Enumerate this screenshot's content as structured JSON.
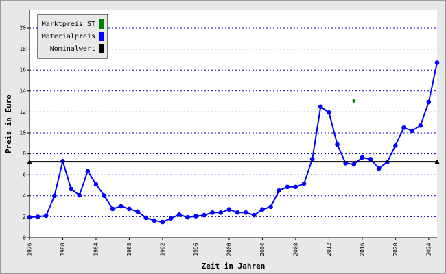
{
  "chart_data": {
    "type": "line",
    "x_label": "Zeit in Jahren",
    "y_label": "Preis in Euro",
    "xlim": [
      1976,
      2025
    ],
    "xticks": [
      1976,
      1980,
      1984,
      1988,
      1992,
      1996,
      2000,
      2004,
      2008,
      2012,
      2016,
      2020,
      2024
    ],
    "ylim": [
      0,
      21.7
    ],
    "yticks": [
      0,
      2,
      4,
      6,
      8,
      10,
      12,
      14,
      16,
      18,
      20
    ],
    "grid": true,
    "legend": "top-left",
    "series": [
      {
        "name": "Marktpreis ST",
        "color": "#008000",
        "marker": "diamond",
        "line": false,
        "x": [
          2015
        ],
        "values": [
          13.05
        ]
      },
      {
        "name": "Materialpreis",
        "color": "#0000ff",
        "marker": "circle",
        "line": true,
        "x": [
          1976,
          1977,
          1978,
          1979,
          1980,
          1981,
          1982,
          1983,
          1984,
          1985,
          1986,
          1987,
          1988,
          1989,
          1990,
          1991,
          1992,
          1993,
          1994,
          1995,
          1996,
          1997,
          1998,
          1999,
          2000,
          2001,
          2002,
          2003,
          2004,
          2005,
          2006,
          2007,
          2008,
          2009,
          2010,
          2011,
          2012,
          2013,
          2014,
          2015,
          2016,
          2017,
          2018,
          2019,
          2020,
          2021,
          2022,
          2023,
          2024,
          2025
        ],
        "values": [
          1.95,
          2.0,
          2.1,
          4.0,
          7.3,
          4.65,
          4.05,
          6.35,
          5.1,
          4.0,
          2.75,
          3.0,
          2.75,
          2.5,
          1.9,
          1.65,
          1.5,
          1.85,
          2.2,
          1.95,
          2.05,
          2.15,
          2.4,
          2.4,
          2.7,
          2.4,
          2.4,
          2.15,
          2.7,
          2.95,
          4.5,
          4.85,
          4.85,
          5.15,
          7.5,
          12.5,
          11.95,
          8.9,
          7.1,
          7.0,
          7.65,
          7.5,
          6.6,
          7.2,
          8.8,
          10.5,
          10.2,
          10.7,
          12.95,
          16.7
        ]
      },
      {
        "name": "Nominalwert",
        "color": "#000000",
        "marker": "triangle",
        "line": true,
        "x": [
          1976,
          2025
        ],
        "values": [
          7.25,
          7.25
        ]
      }
    ]
  }
}
